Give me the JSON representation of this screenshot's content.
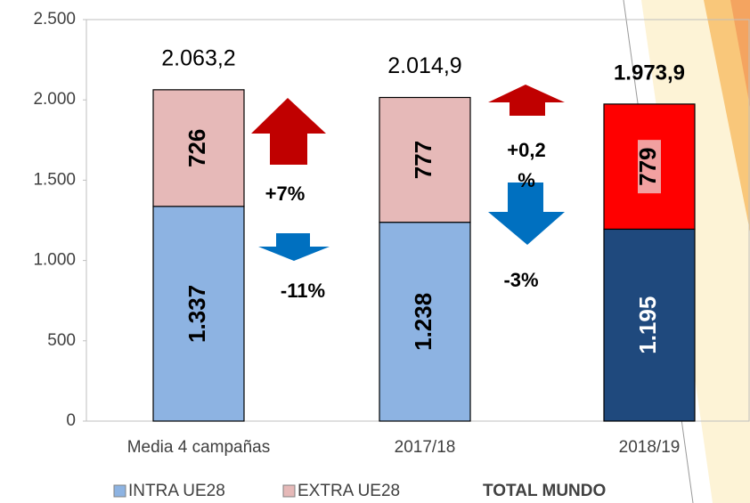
{
  "chart_data": {
    "type": "stacked-bar",
    "categories": [
      "Media 4 campañas",
      "2017/18",
      "2018/19"
    ],
    "series": [
      {
        "name": "INTRA UE28",
        "color": "#8db3e2",
        "colors": [
          "#8db3e2",
          "#8db3e2",
          "#1f497d"
        ],
        "values": [
          1337,
          1238,
          1195
        ],
        "value_labels": [
          "1.337",
          "1.238",
          "1.195"
        ]
      },
      {
        "name": "EXTRA UE28",
        "color": "#e6b9b8",
        "colors": [
          "#e6b9b8",
          "#e6b9b8",
          "#ff0000"
        ],
        "values": [
          726,
          777,
          779
        ]
      }
    ],
    "totals": {
      "name": "TOTAL MUNDO",
      "values": [
        2063.2,
        2014.9,
        1973.9
      ],
      "value_labels": [
        "2.063,2",
        "2.014,9",
        "1.973,9"
      ]
    },
    "annotations": [
      "+7%",
      "-11%",
      "+0,2 %",
      "-3%"
    ],
    "ylim": [
      0,
      2500
    ],
    "yticks": [
      0,
      500,
      {
        "value": 1000,
        "label": "1.000"
      },
      {
        "value": 1500,
        "label": "1.500"
      },
      {
        "value": 2000,
        "label": "2.000"
      },
      {
        "value": 2500,
        "label": "2.500"
      }
    ]
  }
}
